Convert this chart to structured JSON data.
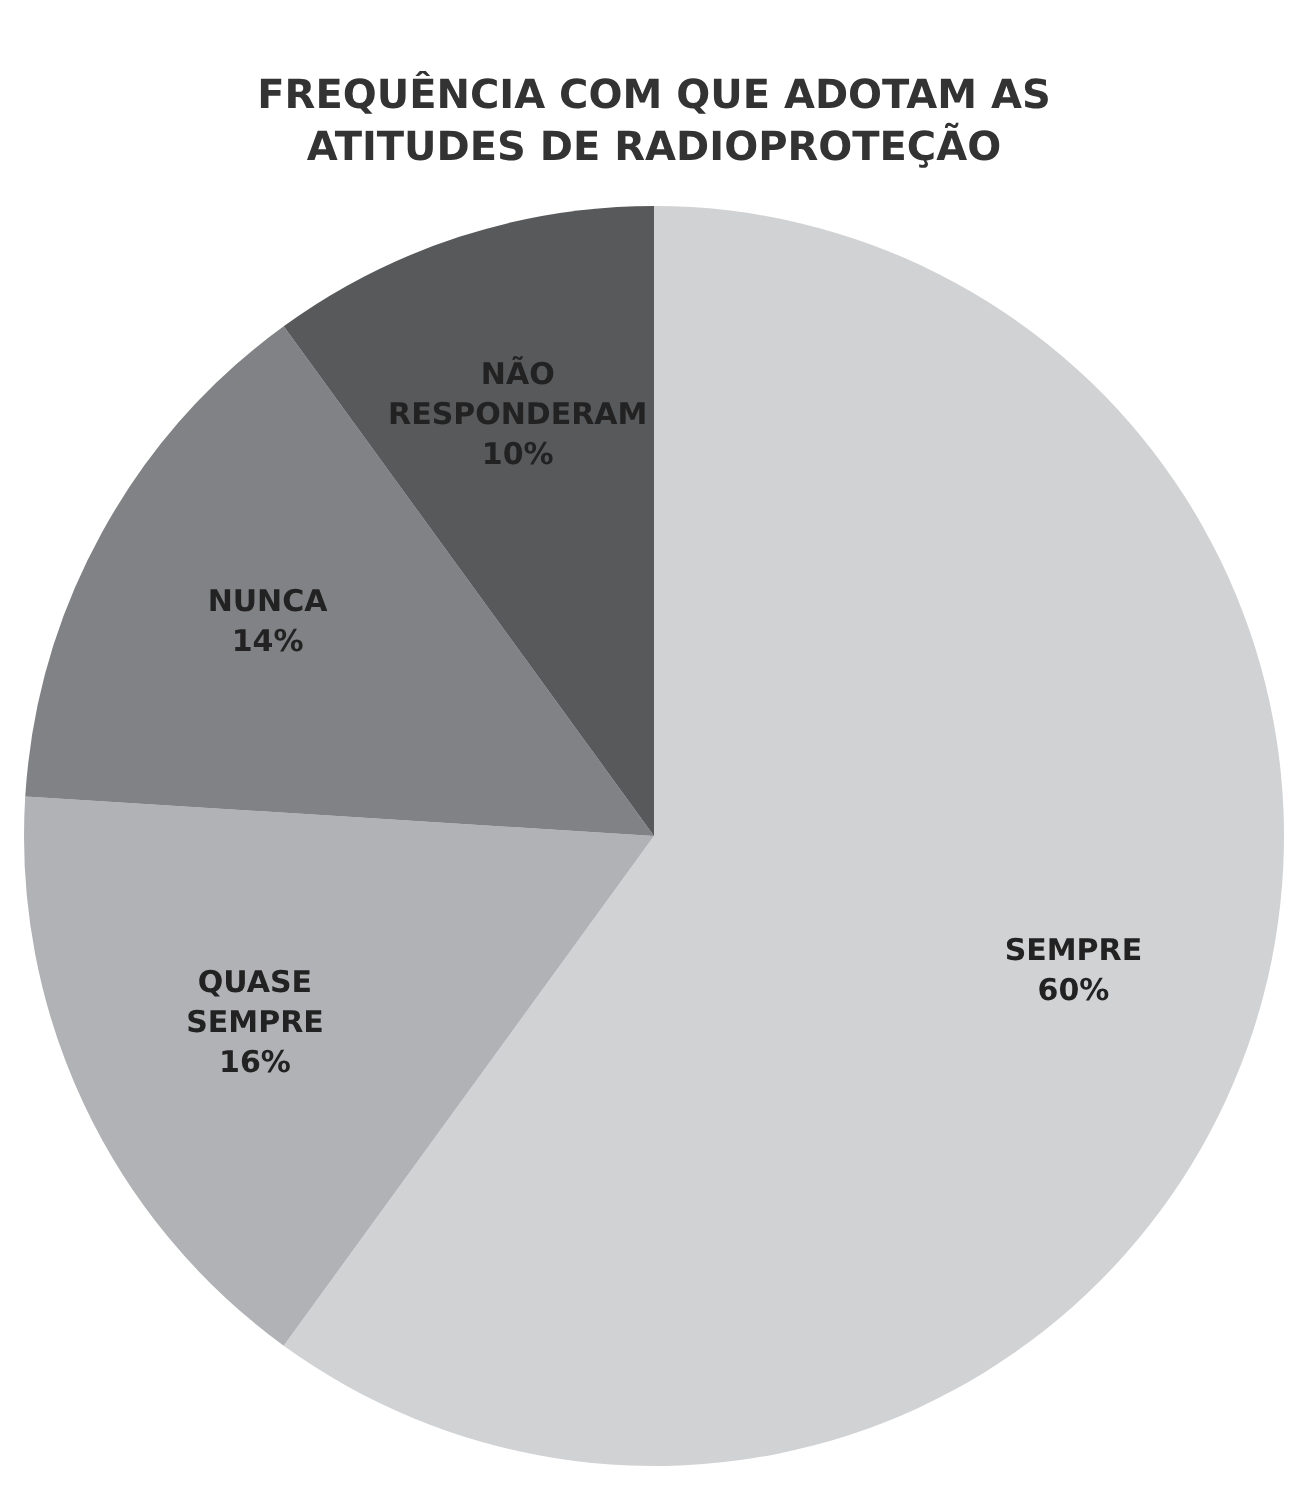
{
  "chart_data": {
    "type": "pie",
    "title": "FREQUÊNCIA COM QUE ADOTAM AS ATITUDES DE RADIOPROTEÇÃO",
    "categories": [
      "SEMPRE",
      "QUASE SEMPRE",
      "NUNCA",
      "NÃO RESPONDERAM"
    ],
    "values": [
      60,
      16,
      14,
      10
    ],
    "value_labels": [
      "60%",
      "16%",
      "14%",
      "10%"
    ],
    "colors": [
      "#d1d2d4",
      "#b1b2b5",
      "#818285",
      "#58595b"
    ],
    "legend": false
  }
}
